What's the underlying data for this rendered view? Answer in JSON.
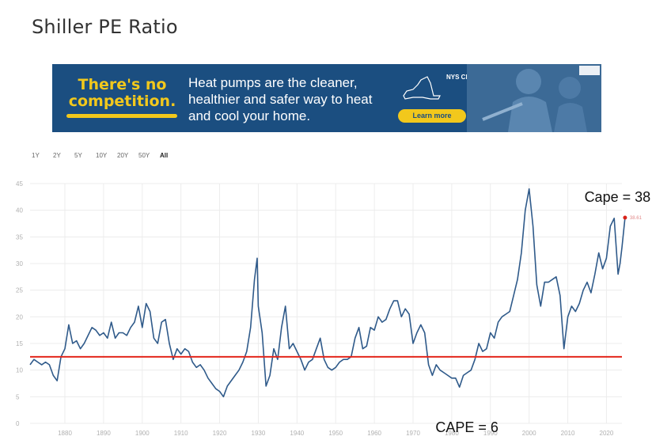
{
  "page": {
    "title": "Shiller PE Ratio"
  },
  "ad": {
    "headline_1": "There's no",
    "headline_2": "competition.",
    "body": "Heat pumps are the cleaner, healthier and safer way to heat and cool your home.",
    "badge": "NYS Clean Heat",
    "cta": "Learn more",
    "colors": {
      "background": "#1b4e80",
      "accent": "#f2c81c"
    }
  },
  "ranges": [
    "1Y",
    "2Y",
    "5Y",
    "10Y",
    "20Y",
    "50Y",
    "All"
  ],
  "active_range": "All",
  "chart_data": {
    "type": "line",
    "title": "",
    "xlabel": "",
    "ylabel": "",
    "xlim": [
      1871,
      2024
    ],
    "ylim": [
      0,
      45
    ],
    "x_ticks": [
      1880,
      1890,
      1900,
      1910,
      1920,
      1930,
      1940,
      1950,
      1960,
      1970,
      1980,
      1990,
      2000,
      2010,
      2020
    ],
    "y_ticks": [
      0,
      5,
      10,
      15,
      20,
      25,
      30,
      35,
      40,
      45
    ],
    "grid": true,
    "series": [
      {
        "color": "#2f5a8a",
        "points": [
          [
            1871,
            11
          ],
          [
            1872,
            12
          ],
          [
            1873,
            11.5
          ],
          [
            1874,
            11
          ],
          [
            1875,
            11.5
          ],
          [
            1876,
            11
          ],
          [
            1877,
            9
          ],
          [
            1878,
            8
          ],
          [
            1879,
            12.5
          ],
          [
            1880,
            14
          ],
          [
            1881,
            18.5
          ],
          [
            1882,
            15
          ],
          [
            1883,
            15.5
          ],
          [
            1884,
            14
          ],
          [
            1885,
            15
          ],
          [
            1886,
            16.5
          ],
          [
            1887,
            18
          ],
          [
            1888,
            17.5
          ],
          [
            1889,
            16.5
          ],
          [
            1890,
            17
          ],
          [
            1891,
            16
          ],
          [
            1892,
            19
          ],
          [
            1893,
            16
          ],
          [
            1894,
            17
          ],
          [
            1895,
            17
          ],
          [
            1896,
            16.5
          ],
          [
            1897,
            18
          ],
          [
            1898,
            19
          ],
          [
            1899,
            22
          ],
          [
            1900,
            18
          ],
          [
            1901,
            22.5
          ],
          [
            1902,
            21
          ],
          [
            1903,
            16
          ],
          [
            1904,
            15
          ],
          [
            1905,
            19
          ],
          [
            1906,
            19.5
          ],
          [
            1907,
            15
          ],
          [
            1908,
            12
          ],
          [
            1909,
            14
          ],
          [
            1910,
            13
          ],
          [
            1911,
            14
          ],
          [
            1912,
            13.5
          ],
          [
            1913,
            11.5
          ],
          [
            1914,
            10.5
          ],
          [
            1915,
            11
          ],
          [
            1916,
            10
          ],
          [
            1917,
            8.5
          ],
          [
            1918,
            7.5
          ],
          [
            1919,
            6.5
          ],
          [
            1920,
            6
          ],
          [
            1921,
            5
          ],
          [
            1922,
            7
          ],
          [
            1923,
            8
          ],
          [
            1924,
            9
          ],
          [
            1925,
            10
          ],
          [
            1926,
            11.5
          ],
          [
            1927,
            13.5
          ],
          [
            1928,
            18
          ],
          [
            1929,
            27
          ],
          [
            1929.7,
            31
          ],
          [
            1930,
            22
          ],
          [
            1931,
            17
          ],
          [
            1932,
            7
          ],
          [
            1933,
            9
          ],
          [
            1934,
            14
          ],
          [
            1935,
            12
          ],
          [
            1936,
            18
          ],
          [
            1937,
            22
          ],
          [
            1938,
            14
          ],
          [
            1939,
            15
          ],
          [
            1940,
            13.5
          ],
          [
            1941,
            12
          ],
          [
            1942,
            10
          ],
          [
            1943,
            11.5
          ],
          [
            1944,
            12
          ],
          [
            1945,
            14
          ],
          [
            1946,
            16
          ],
          [
            1947,
            12
          ],
          [
            1948,
            10.5
          ],
          [
            1949,
            10
          ],
          [
            1950,
            10.5
          ],
          [
            1951,
            11.5
          ],
          [
            1952,
            12
          ],
          [
            1953,
            12
          ],
          [
            1954,
            12.5
          ],
          [
            1955,
            16
          ],
          [
            1956,
            18
          ],
          [
            1957,
            14
          ],
          [
            1958,
            14.5
          ],
          [
            1959,
            18
          ],
          [
            1960,
            17.5
          ],
          [
            1961,
            20
          ],
          [
            1962,
            19
          ],
          [
            1963,
            19.5
          ],
          [
            1964,
            21.5
          ],
          [
            1965,
            23
          ],
          [
            1966,
            23
          ],
          [
            1967,
            20
          ],
          [
            1968,
            21.5
          ],
          [
            1969,
            20.5
          ],
          [
            1970,
            15
          ],
          [
            1971,
            17
          ],
          [
            1972,
            18.5
          ],
          [
            1973,
            17
          ],
          [
            1974,
            11
          ],
          [
            1975,
            9
          ],
          [
            1976,
            11
          ],
          [
            1977,
            10
          ],
          [
            1978,
            9.5
          ],
          [
            1979,
            9
          ],
          [
            1980,
            8.5
          ],
          [
            1981,
            8.5
          ],
          [
            1982,
            6.8
          ],
          [
            1983,
            9
          ],
          [
            1984,
            9.5
          ],
          [
            1985,
            10
          ],
          [
            1986,
            12
          ],
          [
            1987,
            15
          ],
          [
            1988,
            13.5
          ],
          [
            1989,
            14
          ],
          [
            1990,
            17
          ],
          [
            1991,
            16
          ],
          [
            1992,
            19
          ],
          [
            1993,
            20
          ],
          [
            1994,
            20.5
          ],
          [
            1995,
            21
          ],
          [
            1996,
            24
          ],
          [
            1997,
            27
          ],
          [
            1998,
            32
          ],
          [
            1999,
            40
          ],
          [
            2000,
            44
          ],
          [
            2001,
            37
          ],
          [
            2002,
            26
          ],
          [
            2003,
            22
          ],
          [
            2004,
            26.5
          ],
          [
            2005,
            26.5
          ],
          [
            2006,
            27
          ],
          [
            2007,
            27.5
          ],
          [
            2008,
            24
          ],
          [
            2009,
            14
          ],
          [
            2010,
            20
          ],
          [
            2011,
            22
          ],
          [
            2012,
            21
          ],
          [
            2013,
            22.5
          ],
          [
            2014,
            25
          ],
          [
            2015,
            26.5
          ],
          [
            2016,
            24.5
          ],
          [
            2017,
            28
          ],
          [
            2018,
            32
          ],
          [
            2019,
            29
          ],
          [
            2020,
            31
          ],
          [
            2021,
            37
          ],
          [
            2022,
            38.5
          ],
          [
            2023,
            28
          ],
          [
            2023.5,
            30
          ],
          [
            2024,
            33
          ],
          [
            2024.8,
            38.61
          ]
        ]
      }
    ],
    "reference_line": {
      "y": 12.5,
      "color": "#e3261c"
    },
    "last_value": {
      "label": "38.61",
      "x": 2024.8,
      "y": 38.61,
      "color": "#d9231a"
    },
    "annotations": [
      {
        "text": "Cape = 38",
        "x": 2014.3,
        "y": 41.6
      },
      {
        "text": "CAPE = 6",
        "x": 1975.8,
        "y": -1.6
      }
    ]
  }
}
